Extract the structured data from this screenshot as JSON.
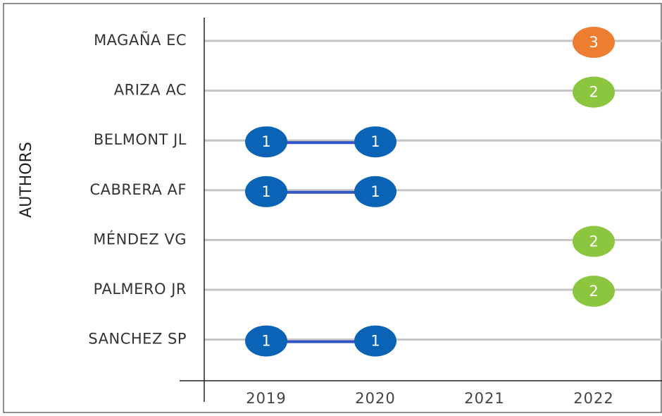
{
  "chart_data": {
    "type": "timeline-bubble",
    "y_label": "AUTHORS",
    "categories": [
      "MAGAÑA EC",
      "ARIZA AC",
      "BELMONT JL",
      "CABRERA AF",
      "MÉNDEZ VG",
      "PALMERO JR",
      "SANCHEZ SP"
    ],
    "x": [
      "2019",
      "2020",
      "2021",
      "2022"
    ],
    "values": [
      [
        null,
        null,
        null,
        3
      ],
      [
        null,
        null,
        null,
        2
      ],
      [
        1,
        1,
        null,
        null
      ],
      [
        1,
        1,
        null,
        null
      ],
      [
        null,
        null,
        null,
        2
      ],
      [
        null,
        null,
        null,
        2
      ],
      [
        1,
        1,
        null,
        null
      ]
    ],
    "colors": [
      "#0b63b5",
      "#8cc63f",
      "#ed7d31"
    ],
    "connector_color": "#2f55c4",
    "grid": true
  }
}
